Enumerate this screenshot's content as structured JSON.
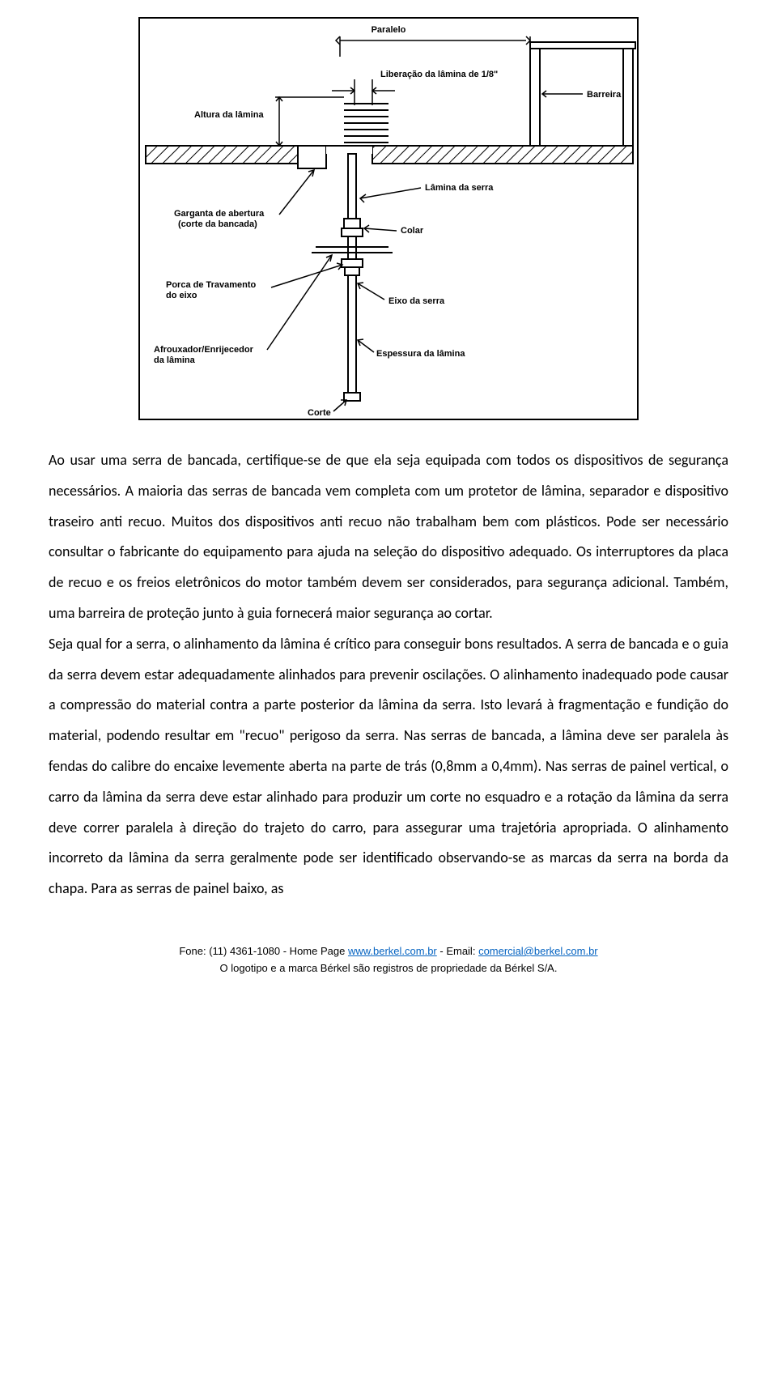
{
  "diagram": {
    "labels": {
      "paralelo": "Paralelo",
      "altura_lamina": "Altura da lâmina",
      "liberacao": "Liberação da lâmina de 1/8\"",
      "barreira": "Barreira",
      "lamina_serra": "Lâmina da serra",
      "garganta": "Garganta de abertura",
      "garganta2": "(corte da bancada)",
      "colar": "Colar",
      "porca": "Porca de Travamento",
      "porca2": "do eixo",
      "eixo": "Eixo da serra",
      "afrouxador": "Afrouxador/Enrijecedor",
      "afrouxador2": "da lâmina",
      "espessura": "Espessura da lâmina",
      "corte": "Corte"
    },
    "hatch_color": "#000000",
    "line_color": "#000000",
    "background": "#ffffff"
  },
  "paragraph": "Ao usar uma serra de bancada, certifique-se de que ela seja equipada com todos os dispositivos de segurança necessários. A maioria das serras de bancada vem completa com um protetor de lâmina, separador e dispositivo traseiro anti recuo. Muitos dos dispositivos anti recuo não trabalham bem com plásticos. Pode ser necessário consultar o fabricante do equipamento para ajuda na seleção do dispositivo adequado. Os interruptores da placa de recuo e os freios eletrônicos do motor também devem ser considerados, para segurança adicional. Também, uma barreira de proteção junto à guia fornecerá maior segurança ao cortar.\nSeja qual for a serra, o alinhamento da lâmina é crítico para conseguir bons resultados. A serra de bancada e o guia da serra devem estar adequadamente alinhados para prevenir oscilações. O alinhamento inadequado pode causar a compressão do material contra a parte posterior da lâmina da serra. Isto levará à fragmentação e fundição do material, podendo resultar em \"recuo\" perigoso da serra. Nas serras de bancada, a lâmina deve ser paralela às fendas do calibre do encaixe levemente aberta na parte de trás (0,8mm a 0,4mm). Nas serras de painel vertical, o carro da lâmina da serra deve estar alinhado para produzir um corte no esquadro e a rotação da lâmina da serra deve correr paralela à direção do trajeto do carro, para assegurar uma trajetória apropriada. O alinhamento incorreto da lâmina da serra geralmente pode ser identificado observando-se as marcas da serra na borda da chapa. Para as serras de painel baixo, as",
  "footer": {
    "phone_prefix": "Fone: (11) 4361-1080 - Home Page ",
    "homepage": "www.berkel.com.br",
    "email_prefix": "  -  Email: ",
    "email": "comercial@berkel.com.br",
    "line2": "O logotipo e a marca Bérkel são registros de propriedade da Bérkel S/A."
  }
}
